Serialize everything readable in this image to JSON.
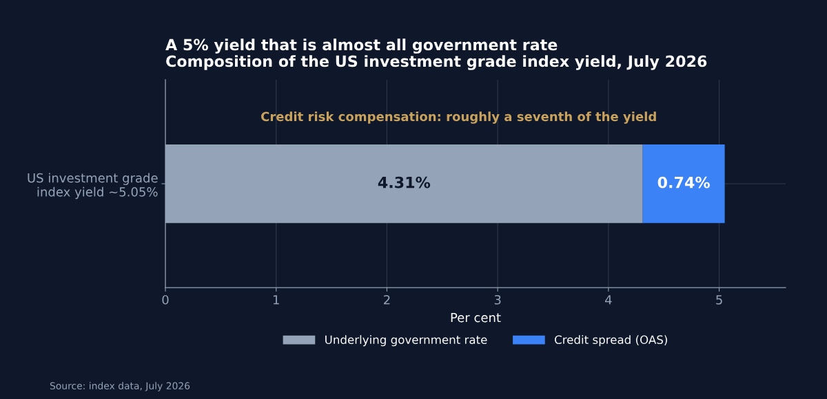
{
  "chart_data": {
    "type": "bar",
    "orientation": "horizontal",
    "stacked": true,
    "title": "A 5% yield that is almost all government rate",
    "subtitle": "Composition of the US investment grade index yield, July 2026",
    "xlabel": "Per cent",
    "categories": [
      "US investment grade\nindex yield ~5.05%"
    ],
    "series": [
      {
        "name": "Underlying government rate",
        "color": "#94a3b8",
        "values": [
          4.31
        ],
        "value_labels": [
          "4.31%"
        ]
      },
      {
        "name": "Credit spread (OAS)",
        "color": "#3b82f6",
        "values": [
          0.74
        ],
        "value_labels": [
          "0.74%"
        ]
      }
    ],
    "xlim": [
      0,
      5.6
    ],
    "xticks": [
      0,
      1,
      2,
      3,
      4,
      5
    ],
    "grid": true,
    "legend": "bottom",
    "annotations": [
      "Credit risk compensation: roughly a seventh of the yield",
      "Source: index data, July 2026"
    ]
  }
}
